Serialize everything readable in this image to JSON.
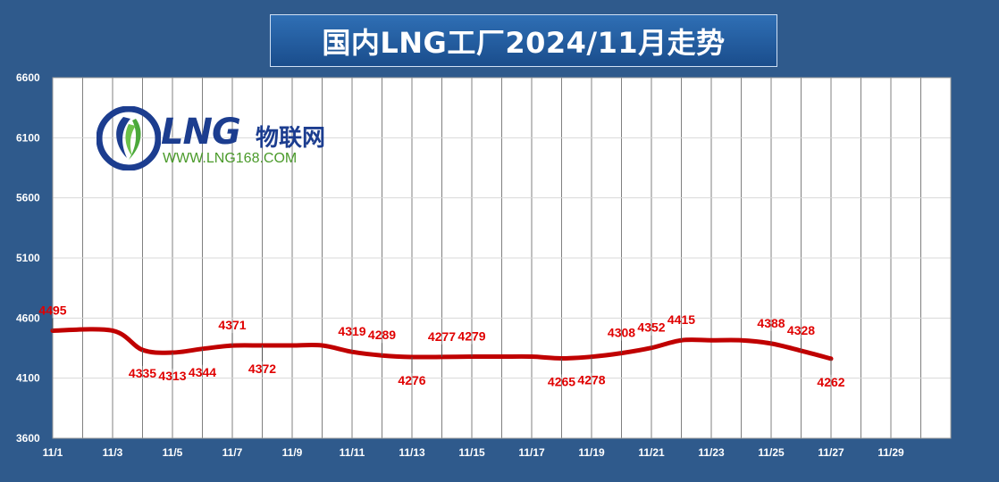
{
  "title": "国内LNG工厂2024/11月走势",
  "logo": {
    "brand": "LNG",
    "brand_cn": "物联网",
    "url": "WWW.LNG168.COM"
  },
  "colors": {
    "background": "#2f5a8c",
    "plot_background": "#ffffff",
    "line": "#c00000",
    "label": "#e00000"
  },
  "chart_data": {
    "type": "line",
    "title": "国内LNG工厂2024/11月走势",
    "xlabel": "",
    "ylabel": "",
    "ylim": [
      3600,
      6600
    ],
    "yticks": [
      3600,
      4100,
      4600,
      5100,
      5600,
      6100,
      6600
    ],
    "xticks": [
      "11/1",
      "11/3",
      "11/5",
      "11/7",
      "11/9",
      "11/11",
      "11/13",
      "11/15",
      "11/17",
      "11/19",
      "11/21",
      "11/23",
      "11/25",
      "11/27",
      "11/29"
    ],
    "grid": true,
    "series": [
      {
        "points": [
          {
            "date": "11/1",
            "value": 4495
          },
          {
            "date": "11/3",
            "value": 4495
          },
          {
            "date": "11/4",
            "value": 4335
          },
          {
            "date": "11/5",
            "value": 4313
          },
          {
            "date": "11/6",
            "value": 4344
          },
          {
            "date": "11/7",
            "value": 4371
          },
          {
            "date": "11/8",
            "value": 4372
          },
          {
            "date": "11/9",
            "value": 4372
          },
          {
            "date": "11/10",
            "value": 4372
          },
          {
            "date": "11/11",
            "value": 4319
          },
          {
            "date": "11/12",
            "value": 4289
          },
          {
            "date": "11/13",
            "value": 4276
          },
          {
            "date": "11/14",
            "value": 4277
          },
          {
            "date": "11/15",
            "value": 4279
          },
          {
            "date": "11/16",
            "value": 4279
          },
          {
            "date": "11/17",
            "value": 4279
          },
          {
            "date": "11/18",
            "value": 4265
          },
          {
            "date": "11/19",
            "value": 4278
          },
          {
            "date": "11/20",
            "value": 4308
          },
          {
            "date": "11/21",
            "value": 4352
          },
          {
            "date": "11/22",
            "value": 4415
          },
          {
            "date": "11/23",
            "value": 4415
          },
          {
            "date": "11/24",
            "value": 4415
          },
          {
            "date": "11/25",
            "value": 4388
          },
          {
            "date": "11/26",
            "value": 4328
          },
          {
            "date": "11/27",
            "value": 4262
          }
        ]
      }
    ],
    "data_labels": [
      {
        "date": "11/1",
        "text": "4495",
        "side": "above"
      },
      {
        "date": "11/4",
        "text": "4335",
        "side": "below"
      },
      {
        "date": "11/5",
        "text": "4313",
        "side": "below"
      },
      {
        "date": "11/6",
        "text": "4344",
        "side": "below"
      },
      {
        "date": "11/7",
        "text": "4371",
        "side": "above"
      },
      {
        "date": "11/8",
        "text": "4372",
        "side": "below"
      },
      {
        "date": "11/11",
        "text": "4319",
        "side": "above"
      },
      {
        "date": "11/12",
        "text": "4289",
        "side": "above"
      },
      {
        "date": "11/13",
        "text": "4276",
        "side": "below"
      },
      {
        "date": "11/14",
        "text": "4277",
        "side": "above"
      },
      {
        "date": "11/15",
        "text": "4279",
        "side": "above"
      },
      {
        "date": "11/18",
        "text": "4265",
        "side": "below"
      },
      {
        "date": "11/19",
        "text": "4278",
        "side": "below"
      },
      {
        "date": "11/20",
        "text": "4308",
        "side": "above"
      },
      {
        "date": "11/21",
        "text": "4352",
        "side": "above"
      },
      {
        "date": "11/22",
        "text": "4415",
        "side": "above"
      },
      {
        "date": "11/25",
        "text": "4388",
        "side": "above"
      },
      {
        "date": "11/26",
        "text": "4328",
        "side": "above"
      },
      {
        "date": "11/27",
        "text": "4262",
        "side": "below"
      }
    ]
  }
}
